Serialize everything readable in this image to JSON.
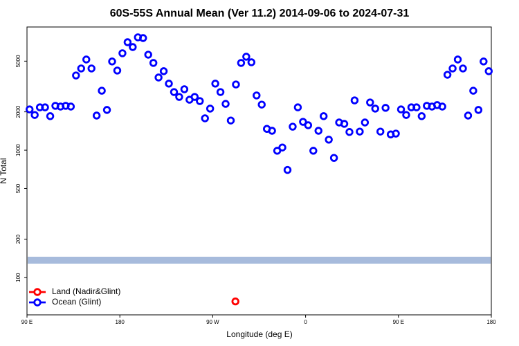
{
  "chart_data": {
    "type": "scatter",
    "title": "60S-55S Annual Mean (Ver 11.2)   2014-09-06 to 2024-07-31",
    "x_label": "Longitude (deg E)",
    "y_label": "N Total",
    "xlim": [
      90,
      540
    ],
    "xticks": [
      {
        "value": 90,
        "label": "90 E"
      },
      180,
      {
        "value": 270,
        "label": "90 W"
      },
      {
        "value": 360,
        "label": "0"
      },
      {
        "value": 450,
        "label": "90 E"
      },
      {
        "value": 540,
        "label": "180"
      }
    ],
    "ylim": [
      51,
      9270
    ],
    "y_log": true,
    "yticks": [
      100,
      200,
      500,
      1000,
      2000,
      5000
    ],
    "band": {
      "value": 137,
      "color": "#a7bbdc"
    },
    "legend": "bottom-left",
    "series": [
      {
        "name": "Land (Nadir&Glint)",
        "color": "#ff0000",
        "x": [
          292
        ],
        "values": [
          65
        ]
      },
      {
        "name": "Ocean (Glint)",
        "color": "#0000ff",
        "x": [
          92.5,
          97.5,
          102.5,
          107.5,
          112.5,
          117.5,
          122.5,
          127.5,
          132.5,
          137.5,
          142.5,
          147.5,
          152.5,
          157.5,
          162.5,
          167.5,
          172.5,
          177.5,
          182.5,
          187.5,
          192.5,
          197.5,
          202.5,
          207.5,
          212.5,
          217.5,
          222.5,
          227.5,
          232.5,
          237.5,
          242.5,
          247.5,
          252.5,
          257.5,
          262.5,
          267.5,
          272.5,
          277.5,
          282.5,
          287.5,
          292.5,
          297.5,
          302.5,
          307.5,
          312.5,
          317.5,
          322.5,
          327.5,
          332.5,
          337.5,
          342.5,
          347.5,
          352.5,
          357.5,
          362.5,
          367.5,
          372.5,
          377.5,
          382.5,
          387.5,
          392.5,
          397.5,
          402.5,
          407.5,
          412.5,
          417.5,
          422.5,
          427.5,
          432.5,
          437.5,
          442.5,
          447.5,
          452.5,
          457.5,
          462.5,
          467.5,
          472.5,
          477.5,
          482.5,
          487.5,
          492.5,
          497.5,
          502.5,
          507.5,
          512.5,
          517.5,
          522.5,
          527.5,
          532.5,
          537.5
        ],
        "values": [
          2090,
          1890,
          2170,
          2170,
          1850,
          2230,
          2200,
          2230,
          2200,
          3860,
          4380,
          5150,
          4380,
          1870,
          2930,
          2070,
          4970,
          4220,
          5770,
          7040,
          6450,
          7690,
          7590,
          5620,
          4840,
          3720,
          4170,
          3330,
          2860,
          2620,
          3010,
          2490,
          2620,
          2430,
          1780,
          2120,
          3330,
          2860,
          2310,
          1710,
          3280,
          4840,
          5420,
          4900,
          2690,
          2280,
          1470,
          1420,
          990,
          1050,
          700,
          1530,
          2170,
          1670,
          1570,
          990,
          1420,
          1850,
          1210,
          870,
          1650,
          1610,
          1390,
          2460,
          1400,
          1650,
          2370,
          2120,
          1400,
          2150,
          1330,
          1350,
          2090,
          1890,
          2170,
          2170,
          1850,
          2230,
          2200,
          2260,
          2200,
          3910,
          4380,
          5150,
          4380,
          1870,
          2930,
          2070,
          4970,
          4170
        ]
      }
    ]
  }
}
